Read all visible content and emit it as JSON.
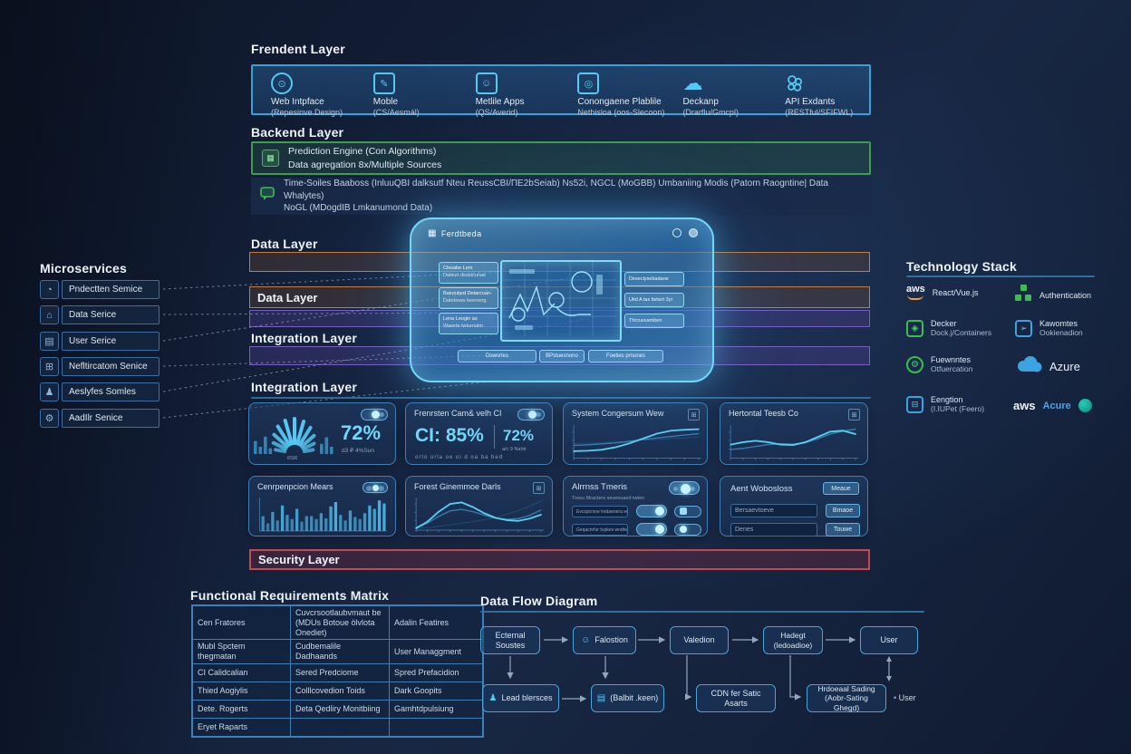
{
  "frontend": {
    "title": "Frendent Layer",
    "items": [
      {
        "icon": "web-interface-icon",
        "line1": "Web Intpface",
        "line2": "(Repesinve Design)"
      },
      {
        "icon": "mobile-icon",
        "line1": "Moble",
        "line2": "(CS/Aesmál)"
      },
      {
        "icon": "mobile-apps-icon",
        "line1": "Metlile Apps",
        "line2": "(QS/Averid)"
      },
      {
        "icon": "cross-platform-icon",
        "line1": "Conongaene Plablile",
        "line2": "Nethisloa (oos-Slecoon)"
      },
      {
        "icon": "desktop-cloud-icon",
        "line1": "Deckanp",
        "line2": "(Drarflu/Gmcpl)"
      },
      {
        "icon": "api-endpoints-icon",
        "line1": "API Exdants",
        "line2": "(RESTful/SFIFWL)"
      }
    ]
  },
  "backend": {
    "title": "Backend Layer",
    "prediction": {
      "line1": "Prediction Engine (Con Algorithms)",
      "line2": "Data agregation 8x/Multiple Sources"
    },
    "database": {
      "line1": "Time-Soiles Baaboss (InluuQBI dalksutf Nteu ReussCBI/ПЕ2bSeiab) Ns52i, NGCL (MoGBB) Umbaniing Modis (Patorn Raogntine| Data Whalytes)",
      "line2": "NoGL (MDogdIB Lmkanumond Data)"
    }
  },
  "layers": {
    "data_heading": "Data Layer",
    "data_band_label": "Data Layer",
    "integration_heading": "Integration Layer",
    "integration_heading2": "Integration Layer",
    "security_label": "Security Layer"
  },
  "panel": {
    "title": "Ferdtbeda",
    "left_buttons": [
      {
        "line1": "Clesabe Lem",
        "line2": "Datsun dssatcunae"
      },
      {
        "line1": "Batutubed Detarcuan-",
        "line2": "Datebows beeneng"
      },
      {
        "line1": "Lena Leogin as",
        "line2": "Wawrta twturnatm"
      }
    ],
    "right_buttons": [
      {
        "label": "Deseclysebadane"
      },
      {
        "label": "Uitd A tas fwtwrt 3yr"
      },
      {
        "label": "Thrcuvvamben"
      }
    ],
    "bottom_buttons": [
      {
        "label": "Dowsrtes"
      },
      {
        "label": "BPstuesnono"
      },
      {
        "label": "Foeties prnunes"
      }
    ]
  },
  "microservices": {
    "title": "Microservices",
    "items": [
      {
        "label": "Pndectten Semice"
      },
      {
        "label": "Data Serice"
      },
      {
        "label": "User Serice"
      },
      {
        "label": "Nefltircatom Senice"
      },
      {
        "label": "Aeslyfes Somles"
      },
      {
        "label": "AadIlr Senice"
      }
    ]
  },
  "tech_stack": {
    "title": "Technology Stack",
    "items": [
      {
        "icon": "aws-icon",
        "line1": "React/Vue.js",
        "line2": ""
      },
      {
        "icon": "auth-blocks-icon",
        "line1": "Authentication",
        "line2": ""
      },
      {
        "icon": "docker-icon",
        "line1": "Decker",
        "line2": "Dock.j/Containers"
      },
      {
        "icon": "kubernetes-icon",
        "line1": "Kawomtes",
        "line2": "Ookienadion"
      },
      {
        "icon": "orchestration-icon",
        "line1": "Fuewnntes",
        "line2": "Otfuercation"
      },
      {
        "icon": "azure-cloud-icon",
        "line1": "Azure",
        "line2": ""
      },
      {
        "icon": "encryption-icon",
        "line1": "Eengtion",
        "line2": "(I.IUPet (Feero)"
      },
      {
        "icon": "aws-azure-icon",
        "line1": "aws",
        "line2": "Acure"
      }
    ]
  },
  "dashboard": {
    "cards": {
      "gauge": {
        "value": "72%",
        "sub": "d3 ₽ 4%Sun",
        "gauge_label": "6SI6",
        "segments": [
          38,
          55,
          72,
          88,
          98,
          100,
          94,
          82,
          66,
          48,
          36
        ],
        "left_bars": [
          45,
          25,
          60,
          20
        ],
        "right_bars": [
          35,
          58,
          25
        ]
      },
      "ci": {
        "title": "Frenrsten Cam& velh CI",
        "big": "CI: 85%",
        "value": "72%",
        "value_note": "a/c 9 Nahtr",
        "sub": "orto orla oe oi d oa ba bed"
      },
      "line1": {
        "title": "System Congersum Wew",
        "series": [
          [
            14,
            15,
            17,
            22,
            30,
            40,
            50,
            56,
            58,
            59
          ],
          [
            26,
            27,
            29,
            31,
            34,
            38,
            41,
            44,
            47,
            50
          ],
          [
            30,
            30,
            31,
            33,
            35,
            37,
            38,
            40,
            41,
            43
          ]
        ]
      },
      "line2": {
        "title": "Hertontal Teesb Co",
        "series": [
          [
            28,
            33,
            36,
            33,
            28,
            27,
            33,
            44,
            55,
            57,
            50
          ],
          [
            18,
            20,
            24,
            28,
            30,
            29,
            32,
            40,
            50,
            56,
            60
          ]
        ]
      },
      "bars": {
        "title": "Cenrpenpcion Mears",
        "values": [
          35,
          18,
          45,
          25,
          60,
          38,
          28,
          52,
          22,
          35,
          35,
          28,
          42,
          30,
          58,
          68,
          38,
          25,
          48,
          33,
          28,
          42,
          60,
          52,
          72,
          65
        ]
      },
      "line3": {
        "title": "Forest Ginemmoe Darls",
        "series": [
          [
            5,
            22,
            48,
            68,
            72,
            60,
            44,
            32,
            26,
            24,
            30,
            40
          ],
          [
            5,
            18,
            36,
            50,
            54,
            48,
            39,
            31,
            28,
            30,
            38,
            52
          ],
          [
            4,
            6,
            10,
            14,
            18,
            22,
            27,
            33,
            41,
            51,
            62,
            75
          ]
        ]
      },
      "alerts": {
        "title": "Alrrnss Tmeris",
        "sub": "Treeu Mracters seveeuaed twten",
        "rows": [
          {
            "field": "Evcspcrsne lrsdaenera erteds"
          },
          {
            "field": "Geqacnrfur tupkes wndtwrtash"
          }
        ]
      },
      "agent": {
        "title": "Aent Wobosloss",
        "button": "Meaue",
        "rows": [
          {
            "field": "Bersaevtoeve",
            "button": "Bmaoe"
          },
          {
            "field": "Denes",
            "button": "Touwe"
          }
        ]
      }
    }
  },
  "matrix": {
    "title": "Functional Requirements Matrix",
    "header": [
      "Cen Fratores",
      "Cuvcrsootlaubvmaut be (MDUs Botoue ölvlota Onediet)",
      "Adalin Featires"
    ],
    "rows": [
      [
        "Mubl Spctem thegmatan",
        "Cudbemalile Dadhaands",
        "User Managgment"
      ],
      [
        "CI Calidcalian",
        "Sered Predciome",
        "Spred Prefacidion"
      ],
      [
        "Thied Aogiylis",
        "Colllcovedion Toids",
        "Dark Goopits"
      ],
      [
        "Dete. Rogerts",
        "Deta Qedliry Monitbiing",
        "Gamhtdpulsiung"
      ],
      [
        "Eryet Raparts",
        "",
        ""
      ]
    ]
  },
  "flow": {
    "title": "Data Flow Diagram",
    "top": [
      {
        "label": "Ecternal Soustes"
      },
      {
        "label": "Falostion",
        "icon": "chat-bot-icon"
      },
      {
        "label": "Valedion"
      },
      {
        "label": "Hadegt",
        "label2": "(ledoadioe)"
      },
      {
        "label": "User"
      }
    ],
    "bottom": [
      {
        "label": "Lead blersces",
        "icon": "person-icon"
      },
      {
        "label": "(Balbit .keen)",
        "icon": "queue-icon"
      },
      {
        "label": "CDN fer Satic Asarts"
      },
      {
        "label": "Hrdoeaal Sading",
        "label2": "(Aobr-Sating Ghegd)"
      }
    ],
    "user_note": "User"
  },
  "colors": {
    "accent_cyan": "#57c8f2",
    "layer_orange": "#c87c3c",
    "layer_purple": "#7a5fc0",
    "green": "#3dbd4e",
    "security_red": "#c24b52",
    "azure_blue": "#3ca2e0",
    "aws_orange": "#f49b42"
  }
}
